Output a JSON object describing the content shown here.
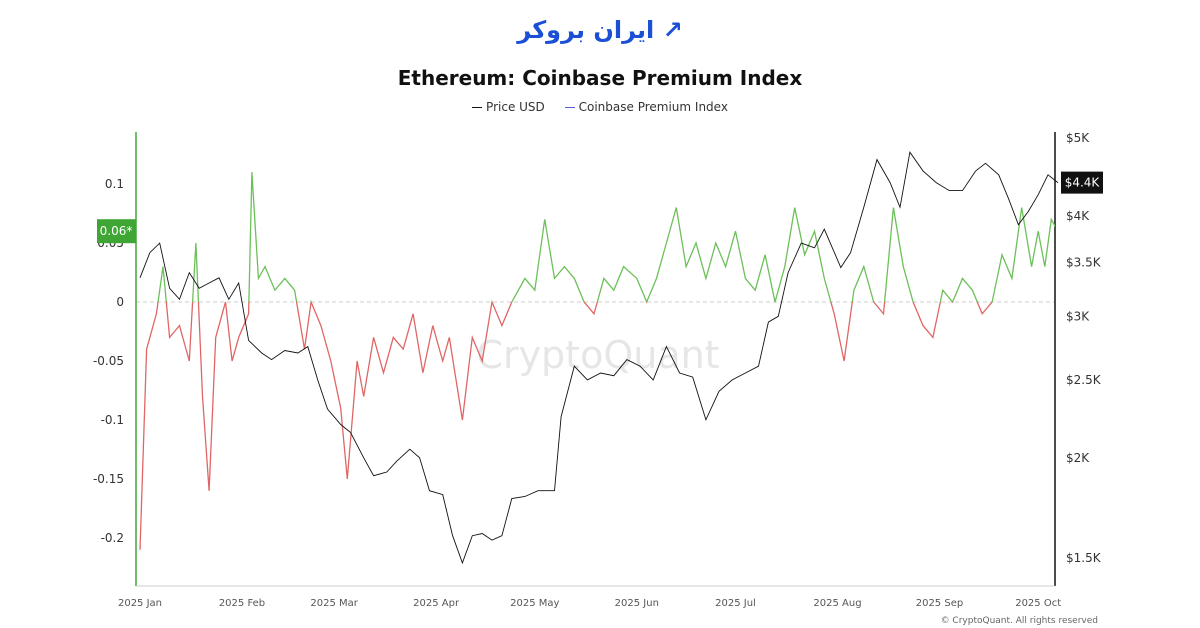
{
  "logo_text": "ایران بروکر",
  "chart_data": {
    "type": "line",
    "title": "Ethereum: Coinbase Premium Index",
    "watermark": "CryptoQuant",
    "copyright": "© CryptoQuant. All rights reserved",
    "legend_position": "top-center",
    "grid": false,
    "colors": {
      "price": "#111111",
      "premium_positive": "#6cc05a",
      "premium_negative": "#e06666",
      "zero_line": "#cccccc",
      "left_marker": "#3fa535",
      "right_marker": "#111111"
    },
    "x_ticks": [
      "2025 Jan",
      "2025 Feb",
      "2025 Mar",
      "2025 Apr",
      "2025 May",
      "2025 Jun",
      "2025 Jul",
      "2025 Aug",
      "2025 Sep",
      "2025 Oct"
    ],
    "x_tick_dates": [
      "2025-01-01",
      "2025-02-01",
      "2025-03-01",
      "2025-04-01",
      "2025-05-01",
      "2025-06-01",
      "2025-07-01",
      "2025-08-01",
      "2025-09-01",
      "2025-10-01"
    ],
    "xlim": [
      "2025-01-01",
      "2025-10-07"
    ],
    "left_axis": {
      "ylim": [
        -0.235,
        0.145
      ],
      "ticks": [
        0.1,
        0.05,
        0,
        -0.05,
        -0.1,
        -0.15,
        -0.2
      ],
      "tick_labels": [
        "0.1",
        "0.05",
        "0",
        "-0.05",
        "-0.1",
        "-0.15",
        "-0.2"
      ],
      "current_label": "0.06*",
      "current_value": 0.06
    },
    "right_axis": {
      "scale": "log",
      "ylim": [
        1420,
        5000
      ],
      "ticks": [
        5000,
        4000,
        3500,
        3000,
        2500,
        2000,
        1500
      ],
      "tick_labels": [
        "$5K",
        "$4K",
        "$3.5K",
        "$3K",
        "$2.5K",
        "$2K",
        "$1.5K"
      ],
      "current_label": "$4.4K",
      "current_value": 4400
    },
    "series": [
      {
        "name": "Price USD",
        "axis": "right",
        "points": [
          [
            "2025-01-01",
            3350
          ],
          [
            "2025-01-04",
            3600
          ],
          [
            "2025-01-07",
            3700
          ],
          [
            "2025-01-10",
            3250
          ],
          [
            "2025-01-13",
            3150
          ],
          [
            "2025-01-16",
            3400
          ],
          [
            "2025-01-19",
            3250
          ],
          [
            "2025-01-22",
            3300
          ],
          [
            "2025-01-25",
            3350
          ],
          [
            "2025-01-28",
            3150
          ],
          [
            "2025-01-31",
            3300
          ],
          [
            "2025-02-03",
            2800
          ],
          [
            "2025-02-07",
            2700
          ],
          [
            "2025-02-10",
            2650
          ],
          [
            "2025-02-14",
            2720
          ],
          [
            "2025-02-18",
            2700
          ],
          [
            "2025-02-21",
            2750
          ],
          [
            "2025-02-24",
            2500
          ],
          [
            "2025-02-27",
            2300
          ],
          [
            "2025-03-03",
            2200
          ],
          [
            "2025-03-06",
            2150
          ],
          [
            "2025-03-10",
            2000
          ],
          [
            "2025-03-13",
            1900
          ],
          [
            "2025-03-17",
            1920
          ],
          [
            "2025-03-20",
            1980
          ],
          [
            "2025-03-24",
            2050
          ],
          [
            "2025-03-27",
            2000
          ],
          [
            "2025-03-30",
            1820
          ],
          [
            "2025-04-03",
            1800
          ],
          [
            "2025-04-06",
            1600
          ],
          [
            "2025-04-09",
            1480
          ],
          [
            "2025-04-12",
            1600
          ],
          [
            "2025-04-15",
            1610
          ],
          [
            "2025-04-18",
            1580
          ],
          [
            "2025-04-21",
            1600
          ],
          [
            "2025-04-24",
            1780
          ],
          [
            "2025-04-28",
            1790
          ],
          [
            "2025-05-02",
            1820
          ],
          [
            "2025-05-07",
            1820
          ],
          [
            "2025-05-09",
            2250
          ],
          [
            "2025-05-13",
            2600
          ],
          [
            "2025-05-17",
            2500
          ],
          [
            "2025-05-21",
            2550
          ],
          [
            "2025-05-25",
            2530
          ],
          [
            "2025-05-29",
            2650
          ],
          [
            "2025-06-02",
            2600
          ],
          [
            "2025-06-06",
            2500
          ],
          [
            "2025-06-10",
            2750
          ],
          [
            "2025-06-14",
            2550
          ],
          [
            "2025-06-18",
            2520
          ],
          [
            "2025-06-22",
            2230
          ],
          [
            "2025-06-26",
            2420
          ],
          [
            "2025-06-30",
            2500
          ],
          [
            "2025-07-04",
            2550
          ],
          [
            "2025-07-08",
            2600
          ],
          [
            "2025-07-11",
            2950
          ],
          [
            "2025-07-14",
            3000
          ],
          [
            "2025-07-17",
            3400
          ],
          [
            "2025-07-21",
            3700
          ],
          [
            "2025-07-25",
            3650
          ],
          [
            "2025-07-28",
            3850
          ],
          [
            "2025-08-02",
            3450
          ],
          [
            "2025-08-05",
            3600
          ],
          [
            "2025-08-09",
            4100
          ],
          [
            "2025-08-13",
            4700
          ],
          [
            "2025-08-17",
            4400
          ],
          [
            "2025-08-20",
            4100
          ],
          [
            "2025-08-23",
            4800
          ],
          [
            "2025-08-27",
            4550
          ],
          [
            "2025-08-31",
            4400
          ],
          [
            "2025-09-04",
            4300
          ],
          [
            "2025-09-08",
            4300
          ],
          [
            "2025-09-12",
            4550
          ],
          [
            "2025-09-15",
            4650
          ],
          [
            "2025-09-19",
            4500
          ],
          [
            "2025-09-22",
            4200
          ],
          [
            "2025-09-25",
            3900
          ],
          [
            "2025-09-28",
            4050
          ],
          [
            "2025-10-01",
            4250
          ],
          [
            "2025-10-04",
            4500
          ],
          [
            "2025-10-07",
            4400
          ]
        ]
      },
      {
        "name": "Coinbase Premium Index",
        "axis": "left",
        "points": [
          [
            "2025-01-01",
            -0.21
          ],
          [
            "2025-01-03",
            -0.04
          ],
          [
            "2025-01-06",
            -0.01
          ],
          [
            "2025-01-08",
            0.03
          ],
          [
            "2025-01-10",
            -0.03
          ],
          [
            "2025-01-13",
            -0.02
          ],
          [
            "2025-01-16",
            -0.05
          ],
          [
            "2025-01-18",
            0.05
          ],
          [
            "2025-01-20",
            -0.08
          ],
          [
            "2025-01-22",
            -0.16
          ],
          [
            "2025-01-24",
            -0.03
          ],
          [
            "2025-01-27",
            0.0
          ],
          [
            "2025-01-29",
            -0.05
          ],
          [
            "2025-01-31",
            -0.03
          ],
          [
            "2025-02-03",
            -0.01
          ],
          [
            "2025-02-04",
            0.11
          ],
          [
            "2025-02-06",
            0.02
          ],
          [
            "2025-02-08",
            0.03
          ],
          [
            "2025-02-11",
            0.01
          ],
          [
            "2025-02-14",
            0.02
          ],
          [
            "2025-02-17",
            0.01
          ],
          [
            "2025-02-20",
            -0.04
          ],
          [
            "2025-02-22",
            0.0
          ],
          [
            "2025-02-25",
            -0.02
          ],
          [
            "2025-02-28",
            -0.05
          ],
          [
            "2025-03-03",
            -0.09
          ],
          [
            "2025-03-05",
            -0.15
          ],
          [
            "2025-03-08",
            -0.05
          ],
          [
            "2025-03-10",
            -0.08
          ],
          [
            "2025-03-13",
            -0.03
          ],
          [
            "2025-03-16",
            -0.06
          ],
          [
            "2025-03-19",
            -0.03
          ],
          [
            "2025-03-22",
            -0.04
          ],
          [
            "2025-03-25",
            -0.01
          ],
          [
            "2025-03-28",
            -0.06
          ],
          [
            "2025-03-31",
            -0.02
          ],
          [
            "2025-04-03",
            -0.05
          ],
          [
            "2025-04-05",
            -0.03
          ],
          [
            "2025-04-09",
            -0.1
          ],
          [
            "2025-04-12",
            -0.03
          ],
          [
            "2025-04-15",
            -0.05
          ],
          [
            "2025-04-18",
            0.0
          ],
          [
            "2025-04-21",
            -0.02
          ],
          [
            "2025-04-24",
            0.0
          ],
          [
            "2025-04-28",
            0.02
          ],
          [
            "2025-05-01",
            0.01
          ],
          [
            "2025-05-04",
            0.07
          ],
          [
            "2025-05-07",
            0.02
          ],
          [
            "2025-05-10",
            0.03
          ],
          [
            "2025-05-13",
            0.02
          ],
          [
            "2025-05-16",
            0.0
          ],
          [
            "2025-05-19",
            -0.01
          ],
          [
            "2025-05-22",
            0.02
          ],
          [
            "2025-05-25",
            0.01
          ],
          [
            "2025-05-28",
            0.03
          ],
          [
            "2025-06-01",
            0.02
          ],
          [
            "2025-06-04",
            0.0
          ],
          [
            "2025-06-07",
            0.02
          ],
          [
            "2025-06-10",
            0.05
          ],
          [
            "2025-06-13",
            0.08
          ],
          [
            "2025-06-16",
            0.03
          ],
          [
            "2025-06-19",
            0.05
          ],
          [
            "2025-06-22",
            0.02
          ],
          [
            "2025-06-25",
            0.05
          ],
          [
            "2025-06-28",
            0.03
          ],
          [
            "2025-07-01",
            0.06
          ],
          [
            "2025-07-04",
            0.02
          ],
          [
            "2025-07-07",
            0.01
          ],
          [
            "2025-07-10",
            0.04
          ],
          [
            "2025-07-13",
            0.0
          ],
          [
            "2025-07-16",
            0.03
          ],
          [
            "2025-07-19",
            0.08
          ],
          [
            "2025-07-22",
            0.04
          ],
          [
            "2025-07-25",
            0.06
          ],
          [
            "2025-07-28",
            0.02
          ],
          [
            "2025-07-31",
            -0.01
          ],
          [
            "2025-08-03",
            -0.05
          ],
          [
            "2025-08-06",
            0.01
          ],
          [
            "2025-08-09",
            0.03
          ],
          [
            "2025-08-12",
            0.0
          ],
          [
            "2025-08-15",
            -0.01
          ],
          [
            "2025-08-18",
            0.08
          ],
          [
            "2025-08-21",
            0.03
          ],
          [
            "2025-08-24",
            0.0
          ],
          [
            "2025-08-27",
            -0.02
          ],
          [
            "2025-08-30",
            -0.03
          ],
          [
            "2025-09-02",
            0.01
          ],
          [
            "2025-09-05",
            0.0
          ],
          [
            "2025-09-08",
            0.02
          ],
          [
            "2025-09-11",
            0.01
          ],
          [
            "2025-09-14",
            -0.01
          ],
          [
            "2025-09-17",
            0.0
          ],
          [
            "2025-09-20",
            0.04
          ],
          [
            "2025-09-23",
            0.02
          ],
          [
            "2025-09-26",
            0.08
          ],
          [
            "2025-09-29",
            0.03
          ],
          [
            "2025-10-01",
            0.06
          ],
          [
            "2025-10-03",
            0.03
          ],
          [
            "2025-10-05",
            0.07
          ],
          [
            "2025-10-07",
            0.06
          ]
        ]
      }
    ]
  }
}
